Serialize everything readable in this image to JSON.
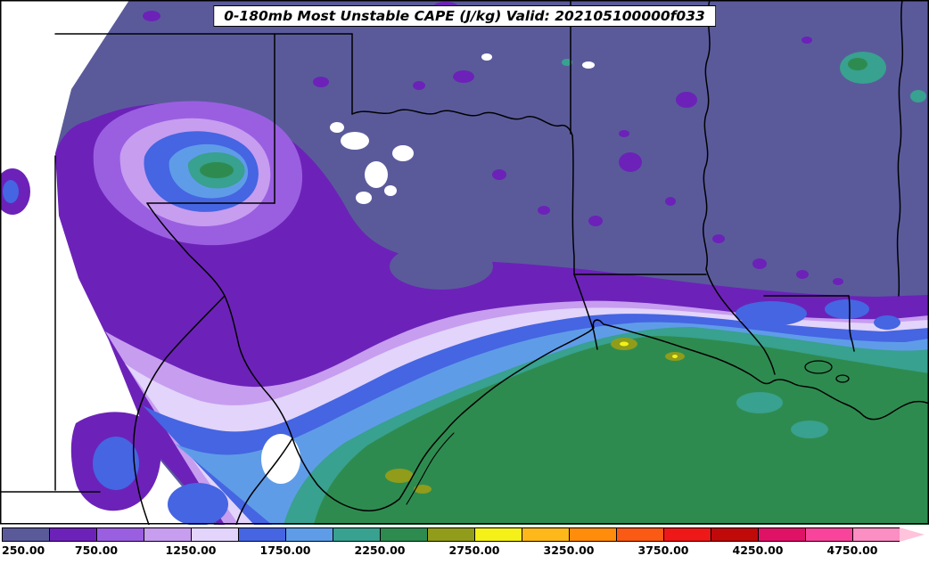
{
  "title": "0-180mb Most Unstable CAPE (J/kg) Valid: 202105100000f033",
  "colorbar": {
    "units": "J/kg",
    "labels": [
      "250.00",
      "750.00",
      "1250.00",
      "1750.00",
      "2250.00",
      "2750.00",
      "3250.00",
      "3750.00",
      "4250.00",
      "4750.00"
    ],
    "colors": [
      "#5a5a9b",
      "#6c22b8",
      "#9a5fe0",
      "#c79df0",
      "#e2d4fa",
      "#4565e2",
      "#5f9ce8",
      "#38a18f",
      "#2e8b50",
      "#909c1a",
      "#f4f018",
      "#ffb81a",
      "#ff8c0a",
      "#fa5a14",
      "#ee1818",
      "#c00a0a",
      "#e01266",
      "#f8449a",
      "#fb8ec2",
      "#ffc3dc"
    ]
  },
  "palette": {
    "white": "#ffffff",
    "slate": "#5a5a9b",
    "purple": "#6c22b8",
    "light_purple": "#9a5fe0",
    "pale_lavender": "#c79df0",
    "pale_lavender2": "#e2d4fa",
    "blue": "#4565e2",
    "light_blue": "#5f9ce8",
    "teal": "#38a18f",
    "green": "#2e8b50",
    "olive": "#909c1a",
    "yellow": "#f4f018",
    "line": "#000000"
  }
}
